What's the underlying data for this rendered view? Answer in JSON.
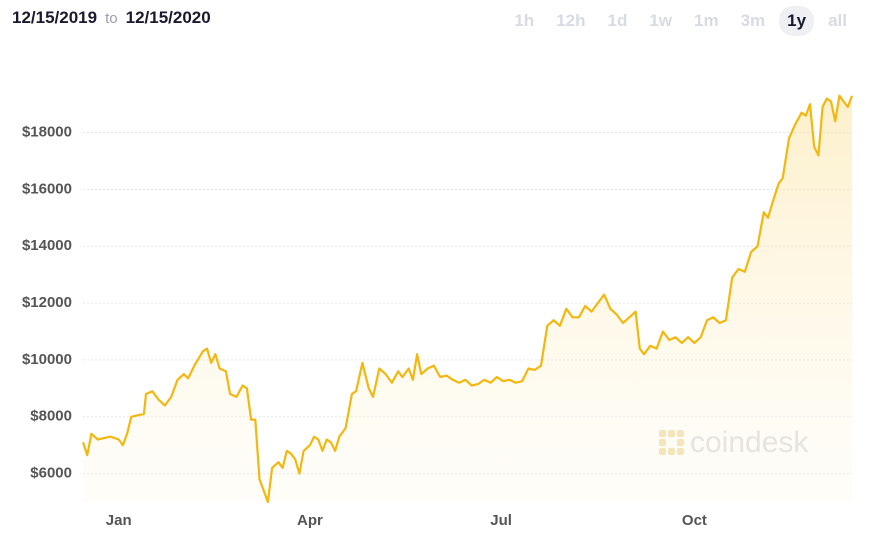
{
  "header": {
    "from": "12/15/2019",
    "to_word": "to",
    "to": "12/15/2020",
    "ranges": [
      "1h",
      "12h",
      "1d",
      "1w",
      "1m",
      "3m",
      "1y",
      "all"
    ],
    "selected_index": 6
  },
  "chart_data": {
    "type": "area",
    "color": "#f4b70f",
    "watermark": "coindesk",
    "x": [
      0,
      2,
      4,
      7,
      10,
      13,
      17,
      19,
      21,
      23,
      26,
      29,
      30,
      33,
      36,
      39,
      42,
      45,
      48,
      50,
      53,
      55,
      57,
      59,
      61,
      63,
      65,
      68,
      70,
      73,
      76,
      78,
      80,
      82,
      84,
      86,
      88,
      90,
      93,
      95,
      97,
      99,
      101,
      103,
      105,
      108,
      110,
      112,
      114,
      116,
      118,
      120,
      122,
      125,
      128,
      130,
      133,
      136,
      138,
      141,
      144,
      147,
      150,
      152,
      155,
      157,
      159,
      161,
      164,
      167,
      170,
      173,
      176,
      179,
      182,
      185,
      188,
      191,
      194,
      197,
      200,
      203,
      206,
      209,
      212,
      215,
      218,
      221,
      224,
      227,
      230,
      233,
      236,
      239,
      242,
      245,
      248,
      251,
      254,
      257,
      260,
      263,
      265,
      267,
      270,
      273,
      276,
      279,
      282,
      285,
      288,
      291,
      294,
      297,
      300,
      303,
      306,
      309,
      312,
      315,
      318,
      321,
      324,
      326,
      328,
      331,
      333,
      336,
      339,
      342,
      344,
      346,
      348,
      350,
      352,
      354,
      356,
      358,
      360,
      362,
      364,
      366
    ],
    "values": [
      7100,
      6650,
      7400,
      7200,
      7250,
      7300,
      7200,
      7000,
      7400,
      8000,
      8050,
      8100,
      8800,
      8900,
      8600,
      8400,
      8700,
      9300,
      9500,
      9350,
      9800,
      10050,
      10300,
      10400,
      9900,
      10200,
      9700,
      9600,
      8800,
      8700,
      9100,
      9000,
      7900,
      7900,
      5800,
      5400,
      5000,
      6200,
      6400,
      6200,
      6800,
      6700,
      6500,
      6000,
      6800,
      7000,
      7300,
      7200,
      6800,
      7200,
      7100,
      6800,
      7300,
      7600,
      8800,
      8900,
      9900,
      9000,
      8700,
      9700,
      9500,
      9200,
      9600,
      9400,
      9700,
      9300,
      10200,
      9500,
      9700,
      9800,
      9400,
      9450,
      9300,
      9200,
      9300,
      9100,
      9150,
      9300,
      9200,
      9400,
      9250,
      9300,
      9200,
      9250,
      9700,
      9650,
      9800,
      11200,
      11400,
      11200,
      11800,
      11500,
      11500,
      11900,
      11700,
      12000,
      12300,
      11800,
      11600,
      11300,
      11500,
      11700,
      10400,
      10200,
      10500,
      10400,
      11000,
      10700,
      10800,
      10600,
      10800,
      10600,
      10800,
      11400,
      11500,
      11300,
      11400,
      12900,
      13200,
      13100,
      13800,
      14000,
      15200,
      15000,
      15500,
      16200,
      16400,
      17800,
      18300,
      18700,
      18600,
      19000,
      17500,
      17200,
      18900,
      19200,
      19100,
      18400,
      19300,
      19100,
      18900,
      19300
    ],
    "xlim": [
      0,
      366
    ],
    "xticks": [
      {
        "value": 17,
        "label": "Jan"
      },
      {
        "value": 108,
        "label": "Apr"
      },
      {
        "value": 199,
        "label": "Jul"
      },
      {
        "value": 291,
        "label": "Oct"
      }
    ],
    "ylim": [
      5000,
      19500
    ],
    "yticks": [
      {
        "value": 6000,
        "label": "$6000"
      },
      {
        "value": 8000,
        "label": "$8000"
      },
      {
        "value": 10000,
        "label": "$10000"
      },
      {
        "value": 12000,
        "label": "$12000"
      },
      {
        "value": 14000,
        "label": "$14000"
      },
      {
        "value": 16000,
        "label": "$16000"
      },
      {
        "value": 18000,
        "label": "$18000"
      }
    ],
    "grid": true
  }
}
